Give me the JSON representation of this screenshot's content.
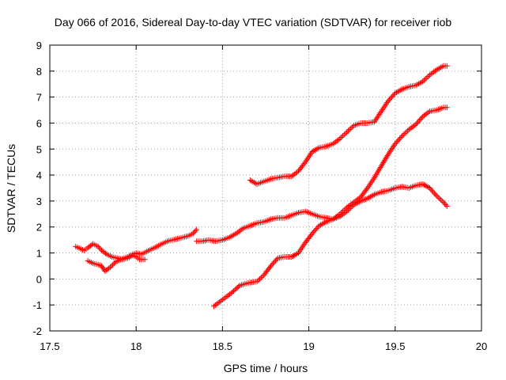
{
  "chart_data": {
    "type": "scatter",
    "title": "Day 066 of 2016, Sidereal Day-to-day VTEC variation (SDTVAR) for receiver riob",
    "xlabel": "GPS time / hours",
    "ylabel": "SDTVAR / TECUs",
    "xlim": [
      17.5,
      20
    ],
    "ylim": [
      -2,
      9
    ],
    "x_ticks": [
      17.5,
      18,
      18.5,
      19,
      19.5,
      20
    ],
    "y_ticks": [
      -2,
      -1,
      0,
      1,
      2,
      3,
      4,
      5,
      6,
      7,
      8,
      9
    ],
    "x_tick_labels": [
      "17.5",
      "18",
      "18.5",
      "19",
      "19.5",
      "20"
    ],
    "y_tick_labels": [
      "-2",
      "-1",
      "0",
      "1",
      "2",
      "3",
      "4",
      "5",
      "6",
      "7",
      "8",
      "9"
    ],
    "grid": true,
    "marker": "+",
    "marker_color": "#ff0000",
    "series": [
      {
        "x": [
          17.65,
          17.68,
          17.7,
          17.72,
          17.75,
          17.78,
          17.8,
          17.83,
          17.86,
          17.89,
          17.92,
          17.95,
          17.98,
          18.0,
          18.02,
          18.05
        ],
        "y": [
          1.25,
          1.15,
          1.1,
          1.2,
          1.35,
          1.25,
          1.1,
          0.95,
          0.85,
          0.8,
          0.75,
          0.8,
          0.9,
          0.85,
          0.75,
          0.75
        ]
      },
      {
        "x": [
          17.72,
          17.75,
          17.78,
          17.8,
          17.82,
          17.85,
          17.88,
          17.91,
          17.95,
          17.98,
          18.0,
          18.03,
          18.06,
          18.09,
          18.12,
          18.15,
          18.18,
          18.21,
          18.24,
          18.27,
          18.3,
          18.33,
          18.35
        ],
        "y": [
          0.7,
          0.6,
          0.55,
          0.5,
          0.3,
          0.45,
          0.65,
          0.75,
          0.85,
          0.95,
          1.0,
          0.95,
          1.05,
          1.15,
          1.25,
          1.35,
          1.45,
          1.5,
          1.55,
          1.6,
          1.65,
          1.75,
          1.9
        ]
      },
      {
        "x": [
          18.35,
          18.38,
          18.42,
          18.46,
          18.5,
          18.54,
          18.58,
          18.62,
          18.66,
          18.7,
          18.74,
          18.78,
          18.82,
          18.86,
          18.9,
          18.94,
          18.98,
          19.02,
          19.06,
          19.1,
          19.14,
          19.18,
          19.22,
          19.26,
          19.3,
          19.34,
          19.38,
          19.42,
          19.46,
          19.5,
          19.54,
          19.58,
          19.62,
          19.66,
          19.7,
          19.74,
          19.78,
          19.8
        ],
        "y": [
          1.45,
          1.45,
          1.5,
          1.45,
          1.5,
          1.6,
          1.75,
          1.95,
          2.05,
          2.15,
          2.2,
          2.3,
          2.35,
          2.35,
          2.45,
          2.55,
          2.6,
          2.5,
          2.4,
          2.35,
          2.3,
          2.4,
          2.6,
          2.85,
          3.0,
          3.1,
          3.25,
          3.35,
          3.4,
          3.5,
          3.55,
          3.5,
          3.6,
          3.65,
          3.5,
          3.2,
          2.95,
          2.8
        ]
      },
      {
        "x": [
          18.66,
          18.7,
          18.74,
          18.78,
          18.82,
          18.86,
          18.9,
          18.94,
          18.98,
          19.02,
          19.06,
          19.1,
          19.14,
          19.18,
          19.22,
          19.26,
          19.3,
          19.34,
          19.38,
          19.42,
          19.46,
          19.5,
          19.54,
          19.58,
          19.62,
          19.66,
          19.7,
          19.74,
          19.78,
          19.8
        ],
        "y": [
          3.8,
          3.65,
          3.75,
          3.85,
          3.9,
          3.95,
          3.95,
          4.15,
          4.5,
          4.9,
          5.05,
          5.1,
          5.2,
          5.4,
          5.65,
          5.9,
          6.0,
          6.0,
          6.05,
          6.45,
          6.85,
          7.15,
          7.3,
          7.4,
          7.45,
          7.6,
          7.85,
          8.05,
          8.2,
          8.2
        ]
      },
      {
        "x": [
          18.45,
          18.5,
          18.55,
          18.6,
          18.65,
          18.7,
          18.74,
          18.78,
          18.82,
          18.86,
          18.9,
          18.94,
          18.98,
          19.02,
          19.06,
          19.1,
          19.14,
          19.18,
          19.22,
          19.26,
          19.3,
          19.34,
          19.38,
          19.42,
          19.46,
          19.5,
          19.54,
          19.58,
          19.62,
          19.66,
          19.7,
          19.74,
          19.78,
          19.8
        ],
        "y": [
          -1.05,
          -0.8,
          -0.55,
          -0.25,
          -0.15,
          -0.1,
          0.15,
          0.5,
          0.8,
          0.85,
          0.85,
          1.0,
          1.4,
          1.75,
          2.05,
          2.2,
          2.3,
          2.5,
          2.75,
          2.95,
          3.15,
          3.5,
          3.9,
          4.35,
          4.8,
          5.2,
          5.5,
          5.75,
          5.95,
          6.25,
          6.45,
          6.5,
          6.6,
          6.6
        ]
      }
    ]
  }
}
